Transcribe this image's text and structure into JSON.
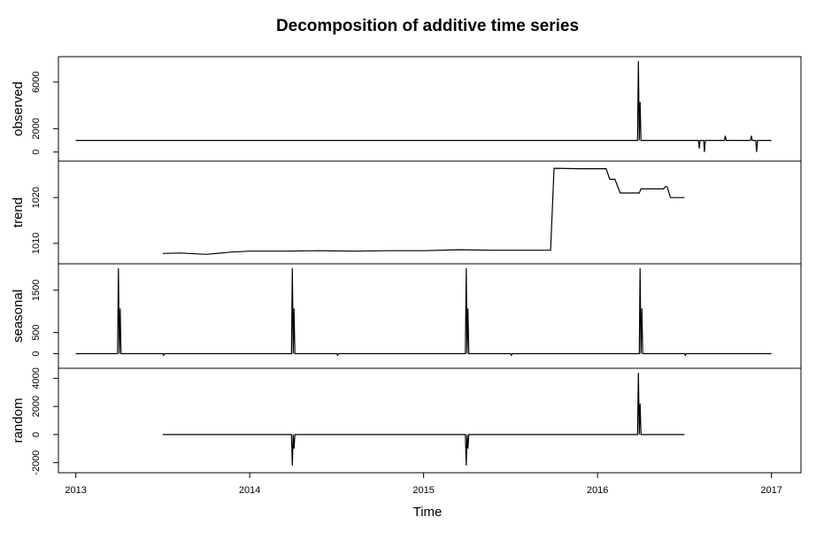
{
  "chart_data": {
    "type": "line",
    "title": "Decomposition of additive time series",
    "xlabel": "Time",
    "xlim": [
      2012.9,
      2017.17
    ],
    "x_ticks": [
      {
        "value": 2013,
        "label": "2013"
      },
      {
        "value": 2014,
        "label": "2014"
      },
      {
        "value": 2015,
        "label": "2015"
      },
      {
        "value": 2016,
        "label": "2016"
      },
      {
        "value": 2017,
        "label": "2017"
      }
    ],
    "grid": false,
    "legend": "none",
    "line_color": "#000000",
    "panels": [
      {
        "name": "observed",
        "ylabel": "observed",
        "ylim": [
          -400,
          7800
        ],
        "y_ticks": [
          {
            "value": 0,
            "label": "0"
          },
          {
            "value": 2000,
            "label": "2000"
          },
          {
            "value": 6000,
            "label": "6000"
          }
        ],
        "series": [
          {
            "x": [
              2013.0,
              2016.23,
              2016.235,
              2016.24,
              2016.245,
              2016.25,
              2016.255,
              2016.26,
              2016.58,
              2016.585,
              2016.59,
              2016.61,
              2016.615,
              2016.62,
              2016.73,
              2016.735,
              2016.74,
              2016.88,
              2016.885,
              2016.89,
              2016.91,
              2016.915,
              2016.92,
              2017.0
            ],
            "y": [
              1000,
              1000,
              7800,
              1000,
              4300,
              1000,
              1000,
              1000,
              1000,
              300,
              1000,
              1000,
              0,
              1000,
              1000,
              1400,
              1000,
              1000,
              1400,
              1000,
              1000,
              0,
              1000,
              1000
            ]
          }
        ]
      },
      {
        "name": "trend",
        "ylabel": "trend",
        "ylim": [
          1006.5,
          1027
        ],
        "y_ticks": [
          {
            "value": 1010,
            "label": "1010"
          },
          {
            "value": 1020,
            "label": "1020"
          }
        ],
        "series": [
          {
            "x": [
              2013.5,
              2013.6,
              2013.75,
              2013.9,
              2014.0,
              2014.2,
              2014.4,
              2014.6,
              2014.8,
              2015.0,
              2015.2,
              2015.4,
              2015.6,
              2015.73,
              2015.75,
              2015.9,
              2016.05,
              2016.07,
              2016.1,
              2016.13,
              2016.24,
              2016.25,
              2016.38,
              2016.39,
              2016.4,
              2016.42,
              2016.5
            ],
            "y": [
              1007.8,
              1007.9,
              1007.6,
              1008.1,
              1008.3,
              1008.3,
              1008.4,
              1008.3,
              1008.4,
              1008.4,
              1008.6,
              1008.5,
              1008.5,
              1008.5,
              1026.4,
              1026.3,
              1026.3,
              1024.0,
              1024.0,
              1021.0,
              1021.0,
              1021.9,
              1021.9,
              1022.4,
              1022.4,
              1020.0,
              1020.0
            ]
          }
        ]
      },
      {
        "name": "seasonal",
        "ylabel": "seasonal",
        "ylim": [
          -240,
          2020
        ],
        "y_ticks": [
          {
            "value": 0,
            "label": "0"
          },
          {
            "value": 500,
            "label": "500"
          },
          {
            "value": 1500,
            "label": "1500"
          }
        ],
        "series": [
          {
            "x": [
              2013.0,
              2013.24,
              2013.245,
              2013.25,
              2013.255,
              2013.26,
              2013.5,
              2013.505,
              2013.51,
              2014.24,
              2014.245,
              2014.25,
              2014.255,
              2014.26,
              2014.5,
              2014.505,
              2014.51,
              2015.24,
              2015.245,
              2015.25,
              2015.255,
              2015.26,
              2015.5,
              2015.505,
              2015.51,
              2016.24,
              2016.245,
              2016.25,
              2016.255,
              2016.26,
              2016.5,
              2016.505,
              2016.51,
              2017.0
            ],
            "y": [
              0,
              0,
              2020,
              0,
              1070,
              0,
              0,
              -40,
              0,
              0,
              2020,
              0,
              1070,
              0,
              0,
              -40,
              0,
              0,
              2020,
              0,
              1070,
              0,
              0,
              -40,
              0,
              0,
              2020,
              0,
              1070,
              0,
              0,
              -40,
              0,
              0
            ]
          }
        ]
      },
      {
        "name": "random",
        "ylabel": "random",
        "ylim": [
          -2400,
          4400
        ],
        "y_ticks": [
          {
            "value": -2000,
            "label": "-2000"
          },
          {
            "value": 0,
            "label": "0"
          },
          {
            "value": 2000,
            "label": "2000"
          },
          {
            "value": 4000,
            "label": "4000"
          }
        ],
        "series": [
          {
            "x": [
              2013.5,
              2014.24,
              2014.245,
              2014.25,
              2014.255,
              2014.26,
              2015.24,
              2015.245,
              2015.25,
              2015.255,
              2015.26,
              2016.23,
              2016.235,
              2016.24,
              2016.245,
              2016.25,
              2016.5
            ],
            "y": [
              0,
              0,
              -2200,
              0,
              -1000,
              0,
              0,
              -2200,
              0,
              -1000,
              0,
              0,
              4400,
              0,
              2200,
              0,
              0
            ]
          }
        ]
      }
    ]
  }
}
